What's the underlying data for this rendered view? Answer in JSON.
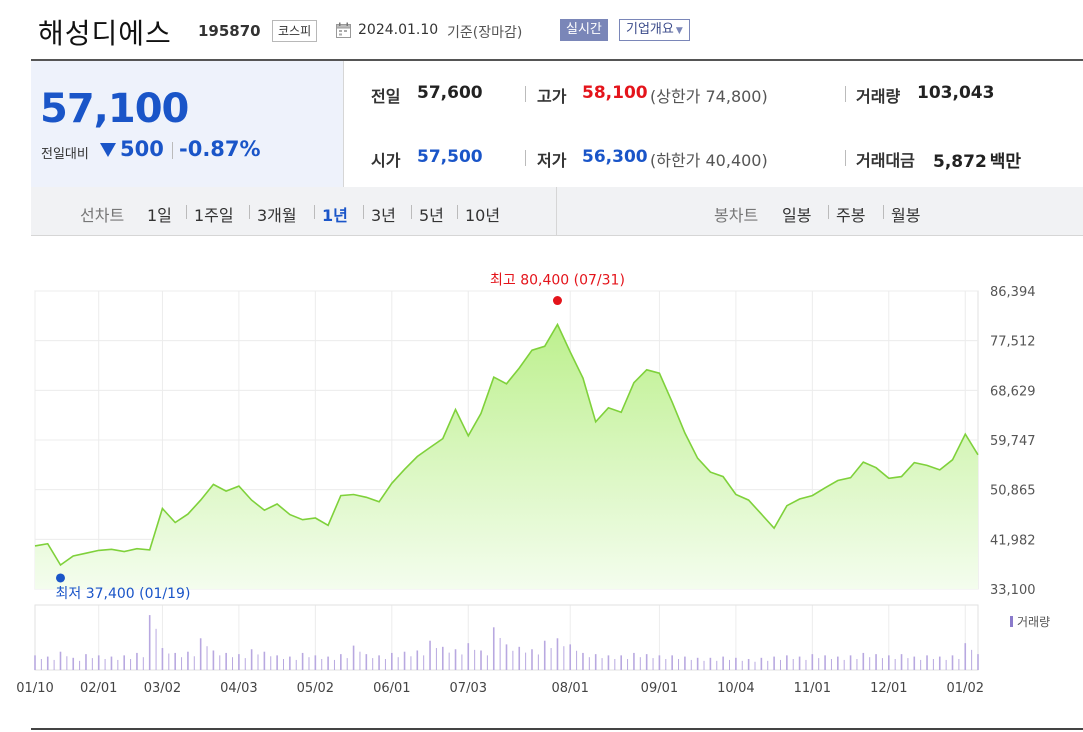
{
  "header": {
    "company_name": "해성디에스",
    "code": "195870",
    "market": "코스피",
    "date": "2024.01.10",
    "basis": "기준(장마감)",
    "realtime_label": "실시간",
    "overview_label": "기업개요"
  },
  "price": {
    "current": "57,100",
    "change_label": "전일대비",
    "change_value": "500",
    "change_rate": "-0.87%",
    "change_direction": "down"
  },
  "stats": {
    "prev_label": "전일",
    "prev_value": "57,600",
    "high_label": "고가",
    "high_value": "58,100",
    "upper_limit_open": "(상한가",
    "upper_limit_value": "74,800",
    "upper_limit_close": ")",
    "volume_label": "거래량",
    "volume_value": "103,043",
    "open_label": "시가",
    "open_value": "57,500",
    "low_label": "저가",
    "low_value": "56,300",
    "lower_limit_open": "(하한가",
    "lower_limit_value": "40,400",
    "lower_limit_close": ")",
    "amount_label": "거래대금",
    "amount_value": "5,872",
    "amount_unit": "백만"
  },
  "tabs": {
    "line_group_label": "선차트",
    "line_items": [
      "1일",
      "1주일",
      "3개월",
      "1년",
      "3년",
      "5년",
      "10년"
    ],
    "line_active": "1년",
    "candle_group_label": "봉차트",
    "candle_items": [
      "일봉",
      "주봉",
      "월봉"
    ]
  },
  "colors": {
    "accent_blue": "#1a55c8",
    "accent_red": "#e4141b",
    "line_green": "#7fd13b",
    "fill_green": "#bdf08e",
    "volume_purple": "#b8a8e0"
  },
  "chart_data": {
    "type": "area",
    "x_dates": [
      "01/10",
      "01/15",
      "01/19",
      "01/24",
      "01/29",
      "02/01",
      "02/06",
      "02/13",
      "02/19",
      "02/26",
      "03/02",
      "03/07",
      "03/12",
      "03/18",
      "03/23",
      "03/28",
      "04/03",
      "04/08",
      "04/12",
      "04/17",
      "04/22",
      "04/27",
      "05/02",
      "05/08",
      "05/14",
      "05/20",
      "05/24",
      "05/30",
      "06/01",
      "06/07",
      "06/13",
      "06/19",
      "06/24",
      "06/29",
      "07/03",
      "07/07",
      "07/11",
      "07/15",
      "07/19",
      "07/24",
      "07/28",
      "07/31",
      "08/01",
      "08/07",
      "08/12",
      "08/17",
      "08/21",
      "08/26",
      "08/31",
      "09/01",
      "09/06",
      "09/11",
      "09/16",
      "09/21",
      "09/27",
      "10/04",
      "10/10",
      "10/14",
      "10/19",
      "10/24",
      "10/30",
      "11/01",
      "11/06",
      "11/11",
      "11/16",
      "11/21",
      "11/26",
      "12/01",
      "12/06",
      "12/11",
      "12/16",
      "12/21",
      "12/26",
      "01/02",
      "01/10"
    ],
    "y_values": [
      40800,
      41200,
      37400,
      39000,
      39500,
      40000,
      40200,
      39800,
      40300,
      40100,
      47500,
      45000,
      46500,
      49000,
      51800,
      50600,
      51500,
      49000,
      47200,
      48300,
      46400,
      45500,
      45800,
      44500,
      49800,
      50000,
      49500,
      48700,
      52000,
      54500,
      56800,
      58400,
      60000,
      65200,
      60500,
      64500,
      71000,
      69800,
      72600,
      75800,
      76500,
      80400,
      75500,
      70800,
      63000,
      65500,
      64700,
      70000,
      72300,
      71700,
      66500,
      61000,
      56500,
      54000,
      53200,
      50000,
      49000,
      46500,
      44000,
      48000,
      49200,
      49800,
      51200,
      52500,
      53000,
      55800,
      54800,
      52900,
      53200,
      55700,
      55200,
      54400,
      56200,
      60800,
      57100
    ],
    "ylim": [
      33100,
      86394
    ],
    "y_ticks": [
      "86,394",
      "77,512",
      "68,629",
      "59,747",
      "50,865",
      "41,982",
      "33,100"
    ],
    "x_tick_labels": [
      "01/10",
      "02/01",
      "03/02",
      "04/03",
      "05/02",
      "06/01",
      "07/03",
      "08/01",
      "09/01",
      "10/04",
      "11/01",
      "12/01",
      "01/02"
    ],
    "max_label": "최고 80,400 (07/31)",
    "max_index": 41,
    "min_label": "최저 37,400 (01/19)",
    "min_index": 2,
    "volume_label": "거래량",
    "volume_values": [
      12,
      11,
      15,
      10,
      13,
      12,
      11,
      12,
      14,
      45,
      18,
      14,
      15,
      26,
      16,
      14,
      13,
      17,
      15,
      12,
      11,
      14,
      12,
      11,
      13,
      20,
      13,
      12,
      14,
      15,
      16,
      24,
      19,
      17,
      22,
      16,
      35,
      21,
      19,
      17,
      24,
      26,
      21,
      14,
      13,
      12,
      12,
      14,
      13,
      12,
      12,
      11,
      10,
      10,
      11,
      10,
      9,
      10,
      11,
      12,
      11,
      13,
      12,
      11,
      12,
      14,
      13,
      12,
      13,
      11,
      12,
      11,
      12,
      22,
      13
    ]
  }
}
